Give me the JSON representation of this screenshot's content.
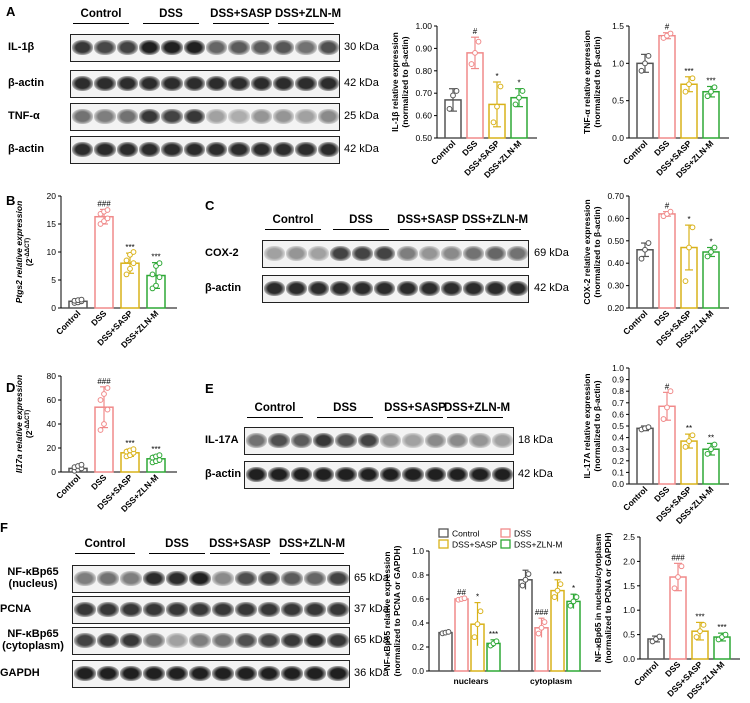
{
  "panels": {
    "A": "A",
    "B": "B",
    "C": "C",
    "D": "D",
    "E": "E",
    "F": "F"
  },
  "groups": [
    "Control",
    "DSS",
    "DSS+SASP",
    "DSS+ZLN-M"
  ],
  "colors": {
    "Control": "#555555",
    "DSS": "#f08a8a",
    "DSS+SASP": "#d9b21a",
    "DSS+ZLN-M": "#2ea836"
  },
  "blots": {
    "A": {
      "rows": [
        {
          "label": "IL-1β",
          "kda": "30 kDa",
          "intensity": [
            0.85,
            0.78,
            0.8,
            0.95,
            0.95,
            0.95,
            0.65,
            0.7,
            0.7,
            0.72,
            0.6,
            0.75
          ]
        },
        {
          "label": "β-actin",
          "kda": "42 kDa",
          "intensity": [
            0.9,
            0.9,
            0.9,
            0.9,
            0.9,
            0.9,
            0.9,
            0.9,
            0.9,
            0.9,
            0.9,
            0.9
          ]
        },
        {
          "label": "TNF-α",
          "kda": "25 kDa",
          "intensity": [
            0.6,
            0.55,
            0.6,
            0.85,
            0.8,
            0.85,
            0.4,
            0.35,
            0.45,
            0.45,
            0.4,
            0.5
          ]
        },
        {
          "label": "β-actin",
          "kda": "42 kDa",
          "intensity": [
            0.9,
            0.9,
            0.9,
            0.9,
            0.9,
            0.9,
            0.9,
            0.9,
            0.9,
            0.9,
            0.9,
            0.9
          ]
        }
      ]
    },
    "C": {
      "rows": [
        {
          "label": "COX-2",
          "kda": "69 kDa",
          "intensity": [
            0.4,
            0.45,
            0.4,
            0.8,
            0.8,
            0.8,
            0.55,
            0.45,
            0.5,
            0.6,
            0.65,
            0.6
          ]
        },
        {
          "label": "β-actin",
          "kda": "42 kDa",
          "intensity": [
            0.9,
            0.9,
            0.9,
            0.9,
            0.9,
            0.9,
            0.9,
            0.9,
            0.9,
            0.9,
            0.9,
            0.9
          ]
        }
      ]
    },
    "E": {
      "rows": [
        {
          "label": "IL-17A",
          "kda": "18 kDa",
          "intensity": [
            0.6,
            0.75,
            0.7,
            0.85,
            0.75,
            0.8,
            0.45,
            0.4,
            0.5,
            0.5,
            0.45,
            0.4
          ]
        },
        {
          "label": "β-actin",
          "kda": "42 kDa",
          "intensity": [
            0.95,
            0.95,
            0.95,
            0.95,
            0.95,
            0.95,
            0.95,
            0.95,
            0.95,
            0.95,
            0.95,
            0.95
          ]
        }
      ]
    },
    "F": {
      "rows": [
        {
          "label": "NF-κBp65\n(nucleus)",
          "kda": "65 kDa",
          "intensity": [
            0.55,
            0.6,
            0.55,
            0.9,
            0.9,
            0.95,
            0.5,
            0.75,
            0.8,
            0.7,
            0.65,
            0.8
          ]
        },
        {
          "label": "PCNA",
          "kda": "37 kDa",
          "intensity": [
            0.85,
            0.85,
            0.85,
            0.85,
            0.85,
            0.85,
            0.85,
            0.85,
            0.85,
            0.85,
            0.85,
            0.85
          ]
        },
        {
          "label": "NF-κBp65\n(cytoplasm)",
          "kda": "65 kDa",
          "intensity": [
            0.8,
            0.85,
            0.85,
            0.6,
            0.4,
            0.55,
            0.6,
            0.75,
            0.8,
            0.85,
            0.9,
            0.85
          ]
        },
        {
          "label": "GAPDH",
          "kda": "36 kDa",
          "intensity": [
            0.95,
            0.95,
            0.95,
            0.95,
            0.95,
            0.95,
            0.95,
            0.95,
            0.95,
            0.95,
            0.95,
            0.95
          ]
        }
      ]
    }
  },
  "chart_data": [
    {
      "id": "A1",
      "type": "bar",
      "ylabel": "IL-1β relative expression\n(normalized to β-actin)",
      "ylim": [
        0.5,
        1.0
      ],
      "yticks": [
        0.5,
        0.6,
        0.7,
        0.8,
        0.9,
        1.0
      ],
      "categories": [
        "Control",
        "DSS",
        "DSS+SASP",
        "DSS+ZLN-M"
      ],
      "values": [
        0.67,
        0.88,
        0.65,
        0.68
      ],
      "errors": [
        0.05,
        0.07,
        0.1,
        0.04
      ],
      "points": [
        [
          0.63,
          0.69,
          0.71
        ],
        [
          0.83,
          0.88,
          0.93
        ],
        [
          0.57,
          0.64,
          0.73
        ],
        [
          0.65,
          0.68,
          0.71
        ]
      ],
      "sig": [
        "",
        "#",
        "*",
        "*"
      ]
    },
    {
      "id": "A2",
      "type": "bar",
      "ylabel": "TNF-α relative expression\n(normalized to β-actin)",
      "ylim": [
        0.0,
        1.5
      ],
      "yticks": [
        0.0,
        0.5,
        1.0,
        1.5
      ],
      "categories": [
        "Control",
        "DSS",
        "DSS+SASP",
        "DSS+ZLN-M"
      ],
      "values": [
        1.0,
        1.37,
        0.72,
        0.62
      ],
      "errors": [
        0.12,
        0.04,
        0.1,
        0.07
      ],
      "points": [
        [
          0.9,
          1.0,
          1.1
        ],
        [
          1.34,
          1.37,
          1.4
        ],
        [
          0.62,
          0.72,
          0.8
        ],
        [
          0.56,
          0.62,
          0.68
        ]
      ],
      "sig": [
        "",
        "#",
        "***",
        "***"
      ]
    },
    {
      "id": "B",
      "type": "bar",
      "ylabel": "Ptgs2 relative expression\n(2^-ΔΔCT)",
      "ylim": [
        0,
        20
      ],
      "yticks": [
        0,
        5,
        10,
        15,
        20
      ],
      "categories": [
        "Control",
        "DSS",
        "DSS+SASP",
        "DSS+ZLN-M"
      ],
      "values": [
        1.2,
        16.3,
        8.0,
        5.8
      ],
      "errors": [
        0.4,
        1.3,
        1.8,
        2.3
      ],
      "points": [
        [
          0.9,
          1.0,
          1.2,
          1.3,
          1.4,
          1.5
        ],
        [
          15.0,
          15.5,
          16.0,
          16.8,
          17.2,
          17.5
        ],
        [
          6.0,
          7.0,
          8.0,
          8.5,
          9.5,
          10.0
        ],
        [
          3.5,
          4.0,
          5.5,
          6.0,
          7.5,
          8.0
        ]
      ],
      "sig": [
        "",
        "###",
        "***",
        "***"
      ]
    },
    {
      "id": "C",
      "type": "bar",
      "ylabel": "COX-2 relative expression\n(normalized to β-actin)",
      "ylim": [
        0.2,
        0.7
      ],
      "yticks": [
        0.2,
        0.3,
        0.4,
        0.5,
        0.6,
        0.7
      ],
      "categories": [
        "Control",
        "DSS",
        "DSS+SASP",
        "DSS+ZLN-M"
      ],
      "values": [
        0.46,
        0.62,
        0.47,
        0.45
      ],
      "errors": [
        0.03,
        0.01,
        0.1,
        0.02
      ],
      "points": [
        [
          0.42,
          0.46,
          0.49
        ],
        [
          0.61,
          0.62,
          0.63
        ],
        [
          0.32,
          0.47,
          0.56
        ],
        [
          0.43,
          0.45,
          0.47
        ]
      ],
      "sig": [
        "",
        "#",
        "*",
        "*"
      ]
    },
    {
      "id": "D",
      "type": "bar",
      "ylabel": "Il17a relative expression\n(2^-ΔΔCT)",
      "ylim": [
        0,
        80
      ],
      "yticks": [
        0,
        20,
        40,
        60,
        80
      ],
      "categories": [
        "Control",
        "DSS",
        "DSS+SASP",
        "DSS+ZLN-M"
      ],
      "values": [
        3,
        54,
        16,
        11
      ],
      "errors": [
        2,
        17,
        3,
        3
      ],
      "points": [
        [
          1,
          2,
          3,
          4,
          5,
          6
        ],
        [
          35,
          40,
          52,
          60,
          65,
          70
        ],
        [
          13,
          14,
          16,
          17,
          18,
          19
        ],
        [
          8,
          9,
          10,
          12,
          13,
          14
        ]
      ],
      "sig": [
        "",
        "###",
        "***",
        "***"
      ]
    },
    {
      "id": "E",
      "type": "bar",
      "ylabel": "IL-17A relative expression\n(normalized to β-actin)",
      "ylim": [
        0.0,
        1.0
      ],
      "yticks": [
        0.0,
        0.1,
        0.2,
        0.3,
        0.4,
        0.5,
        0.6,
        0.7,
        0.8,
        0.9,
        1.0
      ],
      "categories": [
        "Control",
        "DSS",
        "DSS+SASP",
        "DSS+ZLN-M"
      ],
      "values": [
        0.48,
        0.67,
        0.37,
        0.3
      ],
      "errors": [
        0.02,
        0.12,
        0.06,
        0.05
      ],
      "points": [
        [
          0.47,
          0.48,
          0.49
        ],
        [
          0.56,
          0.66,
          0.8
        ],
        [
          0.32,
          0.37,
          0.42
        ],
        [
          0.26,
          0.3,
          0.34
        ]
      ],
      "sig": [
        "",
        "#",
        "**",
        "**"
      ]
    },
    {
      "id": "F1",
      "type": "bar",
      "ylabel": "NF-κBp65 relative expression\n(normalized to PCNA or GAPDH)",
      "ylim": [
        0.0,
        1.0
      ],
      "yticks": [
        0.0,
        0.2,
        0.4,
        0.6,
        0.8,
        1.0
      ],
      "categories": [
        "nuclears",
        "cytoplasm"
      ],
      "series": [
        {
          "name": "Control",
          "values": [
            0.32,
            0.76
          ],
          "errors": [
            0.01,
            0.08
          ],
          "sig": [
            "",
            ""
          ]
        },
        {
          "name": "DSS",
          "values": [
            0.6,
            0.36
          ],
          "errors": [
            0.01,
            0.08
          ],
          "sig": [
            "##",
            "###"
          ]
        },
        {
          "name": "DSS+SASP",
          "values": [
            0.39,
            0.67
          ],
          "errors": [
            0.18,
            0.09
          ],
          "sig": [
            "*",
            "***"
          ]
        },
        {
          "name": "DSS+ZLN-M",
          "values": [
            0.23,
            0.58
          ],
          "errors": [
            0.03,
            0.06
          ],
          "sig": [
            "***",
            "*"
          ]
        }
      ],
      "legend": "top"
    },
    {
      "id": "F2",
      "type": "bar",
      "ylabel": "NF-κBp65 in nucleus/cytoplasm\n(normalized to PCNA or GAPDH)",
      "ylim": [
        0.0,
        2.5
      ],
      "yticks": [
        0.0,
        0.5,
        1.0,
        1.5,
        2.0,
        2.5
      ],
      "categories": [
        "Control",
        "DSS",
        "DSS+SASP",
        "DSS+ZLN-M"
      ],
      "values": [
        0.41,
        1.68,
        0.57,
        0.45
      ],
      "errors": [
        0.06,
        0.28,
        0.18,
        0.08
      ],
      "points": [
        [
          0.36,
          0.41,
          0.46
        ],
        [
          1.45,
          1.68,
          1.9
        ],
        [
          0.45,
          0.57,
          0.7
        ],
        [
          0.4,
          0.45,
          0.5
        ]
      ],
      "sig": [
        "",
        "###",
        "***",
        "***"
      ]
    }
  ]
}
